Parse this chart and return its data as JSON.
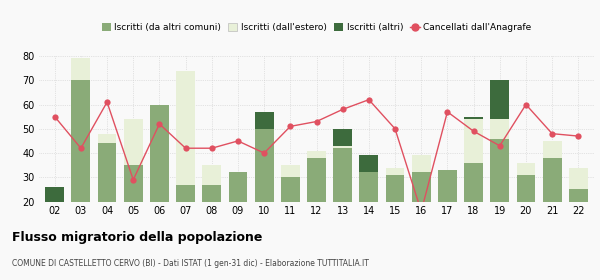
{
  "years": [
    "02",
    "03",
    "04",
    "05",
    "06",
    "07",
    "08",
    "09",
    "10",
    "11",
    "12",
    "13",
    "14",
    "15",
    "16",
    "17",
    "18",
    "19",
    "20",
    "21",
    "22"
  ],
  "iscritti_altri_comuni": [
    20,
    70,
    44,
    35,
    60,
    27,
    27,
    32,
    50,
    30,
    38,
    42,
    32,
    31,
    32,
    33,
    36,
    46,
    31,
    38,
    25
  ],
  "iscritti_estero": [
    0,
    9,
    4,
    19,
    0,
    47,
    8,
    0,
    0,
    5,
    3,
    1,
    0,
    3,
    7,
    0,
    18,
    8,
    5,
    7,
    9
  ],
  "iscritti_altri": [
    6,
    0,
    0,
    0,
    0,
    0,
    0,
    0,
    7,
    0,
    0,
    7,
    7,
    0,
    0,
    0,
    1,
    16,
    0,
    0,
    0
  ],
  "cancellati": [
    55,
    42,
    61,
    29,
    52,
    42,
    42,
    45,
    40,
    51,
    53,
    58,
    62,
    50,
    16,
    57,
    49,
    43,
    60,
    48,
    47
  ],
  "color_altri_comuni": "#8aab78",
  "color_estero": "#e8f0d8",
  "color_altri": "#3d6b3d",
  "color_cancellati": "#e05060",
  "ylim": [
    20,
    80
  ],
  "yticks": [
    20,
    30,
    40,
    50,
    60,
    70,
    80
  ],
  "legend_labels": [
    "Iscritti (da altri comuni)",
    "Iscritti (dall'estero)",
    "Iscritti (altri)",
    "Cancellati dall'Anagrafe"
  ],
  "title": "Flusso migratorio della popolazione",
  "subtitle": "COMUNE DI CASTELLETTO CERVO (BI) - Dati ISTAT (1 gen-31 dic) - Elaborazione TUTTITALIA.IT",
  "background_color": "#f9f9f9",
  "grid_color": "#cccccc"
}
